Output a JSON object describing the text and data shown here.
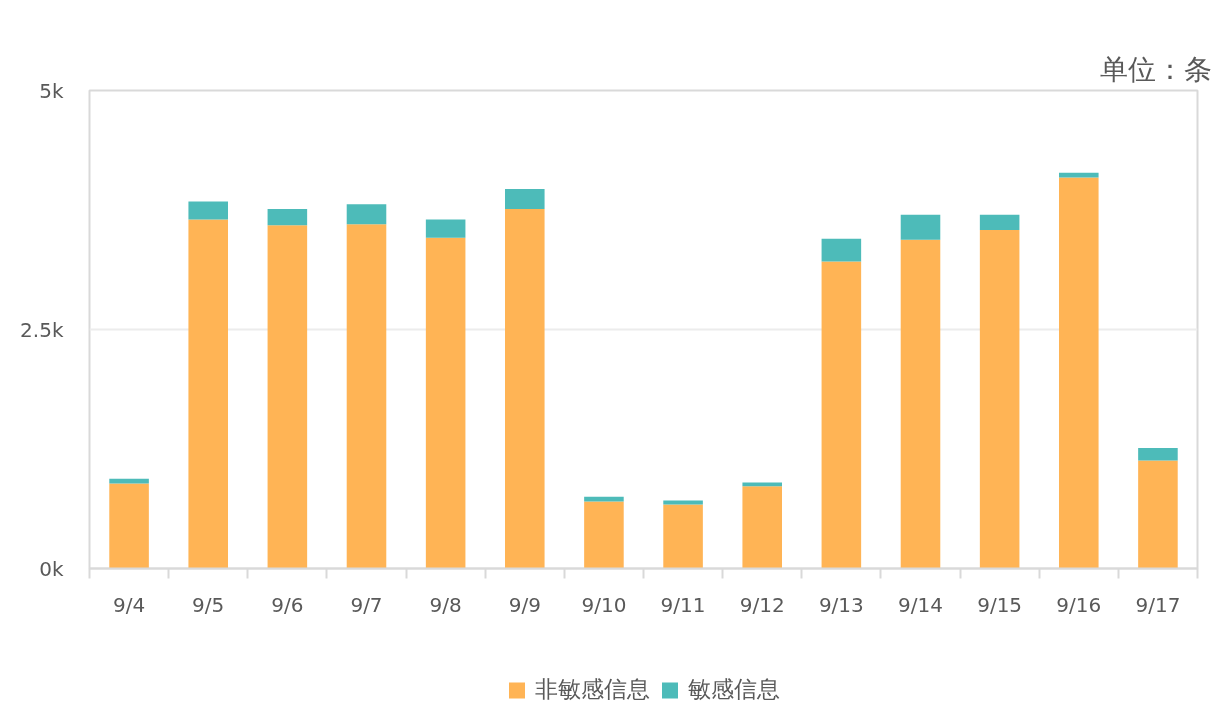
{
  "chart_data": {
    "type": "bar",
    "stacked": true,
    "categories": [
      "9/4",
      "9/5",
      "9/6",
      "9/7",
      "9/8",
      "9/9",
      "9/10",
      "9/11",
      "9/12",
      "9/13",
      "9/14",
      "9/15",
      "9/16",
      "9/17"
    ],
    "series": [
      {
        "name": "非敏感信息",
        "color": "#ffb455",
        "values": [
          890,
          3650,
          3590,
          3600,
          3460,
          3760,
          700,
          670,
          860,
          3210,
          3440,
          3540,
          4090,
          1130
        ]
      },
      {
        "name": "敏感信息",
        "color": "#4dbbb9",
        "values": [
          50,
          190,
          170,
          210,
          190,
          210,
          50,
          40,
          40,
          240,
          260,
          160,
          50,
          130
        ]
      }
    ],
    "ylim": [
      0,
      5000
    ],
    "yticks": [
      {
        "value": 0,
        "label": "0k"
      },
      {
        "value": 2500,
        "label": "2.5k"
      },
      {
        "value": 5000,
        "label": "5k"
      }
    ],
    "grid": "y",
    "legend": "bottom",
    "annotations": [
      "单位：条"
    ]
  }
}
